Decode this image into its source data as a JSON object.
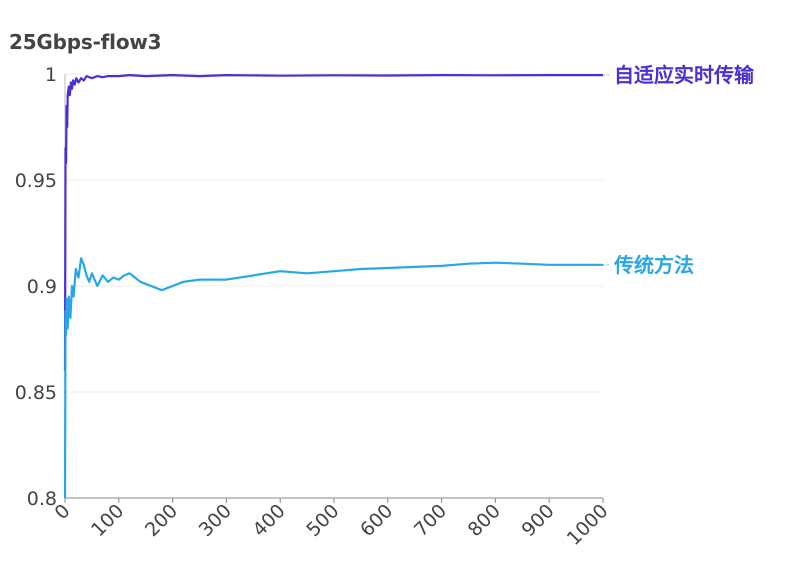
{
  "chart_data": {
    "type": "line",
    "title": "25Gbps-flow3",
    "xlabel": "",
    "ylabel": "",
    "xlim": [
      0,
      1000
    ],
    "ylim": [
      0.8,
      1.0
    ],
    "x_ticks": [
      "0",
      "100",
      "200",
      "300",
      "400",
      "500",
      "600",
      "700",
      "800",
      "900",
      "1000"
    ],
    "y_ticks": [
      "0.8",
      "0.85",
      "0.9",
      "0.95",
      "1"
    ],
    "grid": "horizontal",
    "legend": "direct labels at right end of lines",
    "series": [
      {
        "name": "自适应实时传输",
        "color": "#4a2fd6",
        "x": [
          0,
          1,
          2,
          3,
          4,
          5,
          7,
          9,
          11,
          13,
          15,
          18,
          21,
          25,
          30,
          35,
          40,
          50,
          60,
          70,
          80,
          100,
          120,
          150,
          200,
          250,
          300,
          400,
          500,
          600,
          700,
          800,
          900,
          1000
        ],
        "y": [
          0.86,
          0.965,
          0.958,
          0.985,
          0.975,
          0.99,
          0.994,
          0.99,
          0.996,
          0.993,
          0.997,
          0.995,
          0.998,
          0.996,
          0.998,
          0.997,
          0.999,
          0.998,
          0.999,
          0.9985,
          0.999,
          0.999,
          0.9995,
          0.999,
          0.9995,
          0.999,
          0.9995,
          0.9992,
          0.9994,
          0.9993,
          0.9995,
          0.9994,
          0.9995,
          0.9995
        ]
      },
      {
        "name": "传统方法",
        "color": "#28a7e6",
        "x": [
          0,
          1,
          2,
          3,
          5,
          7,
          10,
          13,
          16,
          20,
          25,
          30,
          35,
          40,
          45,
          50,
          60,
          70,
          80,
          90,
          100,
          110,
          120,
          130,
          140,
          160,
          180,
          200,
          220,
          250,
          300,
          350,
          400,
          450,
          500,
          550,
          600,
          650,
          700,
          750,
          800,
          850,
          900,
          950,
          1000
        ],
        "y": [
          0.8,
          0.888,
          0.877,
          0.894,
          0.88,
          0.895,
          0.885,
          0.9,
          0.895,
          0.908,
          0.904,
          0.913,
          0.91,
          0.905,
          0.902,
          0.906,
          0.9,
          0.905,
          0.902,
          0.904,
          0.903,
          0.905,
          0.906,
          0.904,
          0.902,
          0.9,
          0.898,
          0.9,
          0.902,
          0.903,
          0.903,
          0.905,
          0.907,
          0.906,
          0.907,
          0.908,
          0.9085,
          0.909,
          0.9095,
          0.9105,
          0.911,
          0.9105,
          0.91,
          0.91,
          0.91
        ]
      }
    ]
  }
}
